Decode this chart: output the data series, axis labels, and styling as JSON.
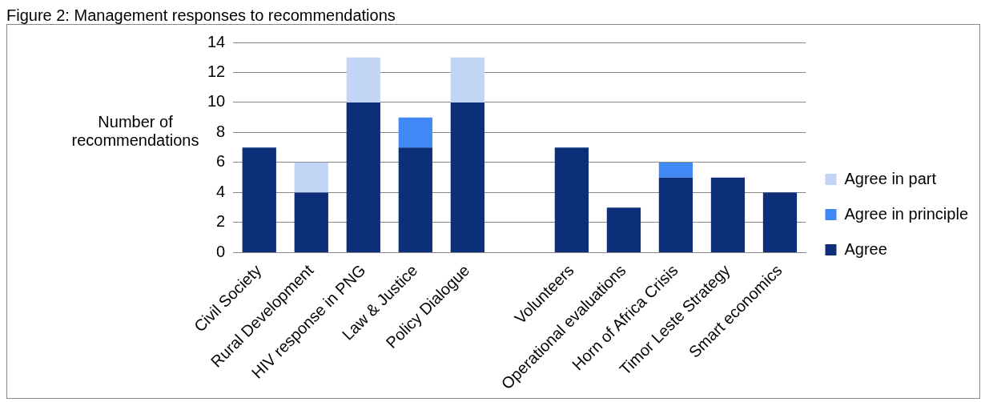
{
  "chart_data": {
    "type": "bar",
    "title": "Figure 2: Management responses to recommendations",
    "ylabel": "Number of recommendations",
    "categories": [
      "Civil Society",
      "Rural Development",
      "HIV response in PNG",
      "Law & Justice",
      "Policy Dialogue",
      null,
      "Volunteers",
      "Operational evaluations",
      "Horn of Africa Crisis",
      "Timor Leste Strategy",
      "Smart economics"
    ],
    "series": [
      {
        "name": "Agree",
        "color": "#0d2f7a",
        "values": [
          7,
          4,
          10,
          7,
          10,
          null,
          7,
          3,
          5,
          5,
          4
        ]
      },
      {
        "name": "Agree in principle",
        "color": "#4088f5",
        "values": [
          0,
          0,
          0,
          2,
          0,
          null,
          0,
          0,
          1,
          0,
          0
        ]
      },
      {
        "name": "Agree in part",
        "color": "#c3d5f5",
        "values": [
          0,
          2,
          3,
          0,
          3,
          null,
          0,
          0,
          0,
          0,
          0
        ]
      }
    ],
    "stacked": true,
    "ylim": [
      0,
      14
    ],
    "yticks": [
      0,
      2,
      4,
      6,
      8,
      10,
      12,
      14
    ],
    "grid": "y",
    "legend": "right"
  }
}
